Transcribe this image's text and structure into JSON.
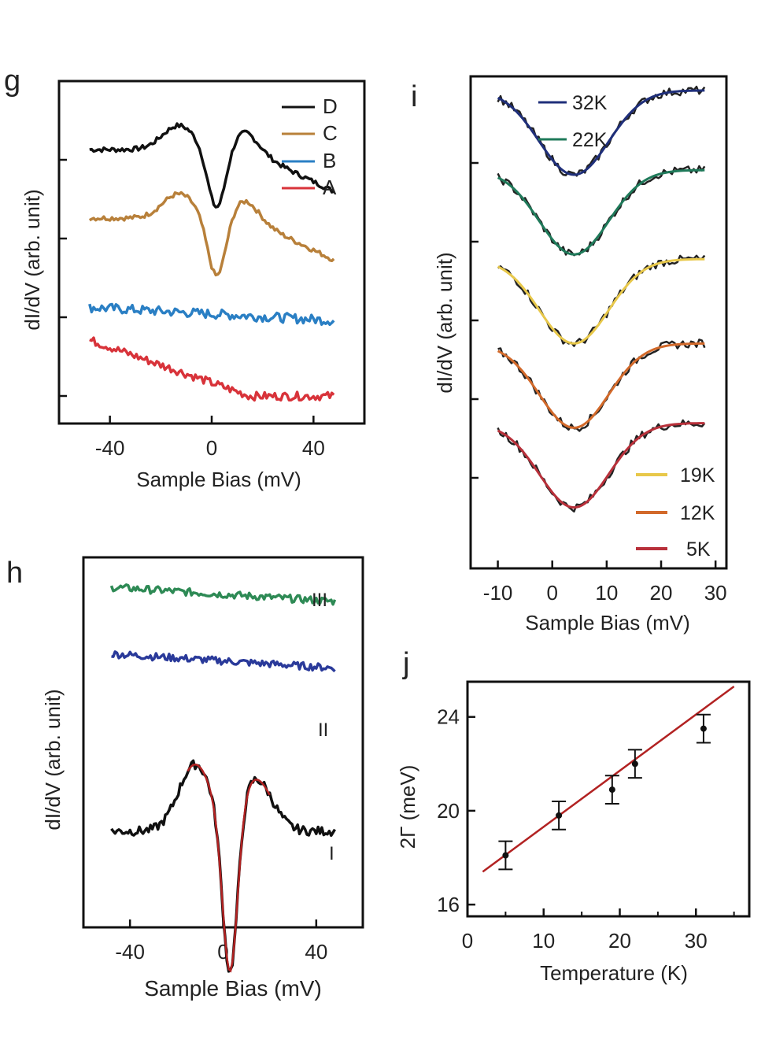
{
  "chart_data": [
    {
      "id": "g",
      "type": "line",
      "panel_label": "g",
      "xlabel": "Sample Bias (mV)",
      "ylabel": "dI/dV (arb. unit)",
      "xticks": [
        "-40",
        "0",
        "40"
      ],
      "xtick_values": [
        -40,
        0,
        40
      ],
      "xlim": [
        -60,
        60
      ],
      "legend": [
        "D",
        "C",
        "B",
        "A"
      ],
      "series": [
        {
          "name": "D",
          "color": "#111111",
          "style": "gap",
          "center": 0,
          "offset": 4.0,
          "amp": 0.9
        },
        {
          "name": "C",
          "color": "#b8803a",
          "style": "gap",
          "center": 0,
          "offset": 3.0,
          "amp": 0.9
        },
        {
          "name": "B",
          "color": "#2a7fc4",
          "style": "flat",
          "offset": 1.6
        },
        {
          "name": "A",
          "color": "#d8333a",
          "style": "slope",
          "offset": 0.4
        }
      ]
    },
    {
      "id": "h",
      "type": "line",
      "panel_label": "h",
      "xlabel": "Sample Bias (mV)",
      "ylabel": "dI/dV (arb. unit)",
      "xticks": [
        "-40",
        "0",
        "40"
      ],
      "xtick_values": [
        -40,
        0,
        40
      ],
      "xlim": [
        -60,
        60
      ],
      "curve_labels": [
        "III",
        "II",
        "I"
      ],
      "series": [
        {
          "name": "III",
          "color": "#2e8a55",
          "style": "flat",
          "offset": 4.5
        },
        {
          "name": "II",
          "color": "#2a3a9a",
          "style": "flat",
          "offset": 3.6
        },
        {
          "name": "I",
          "color": "#111111",
          "style": "deepgap",
          "fit_color": "#b22222",
          "offset": 1.0
        }
      ]
    },
    {
      "id": "i",
      "type": "line",
      "panel_label": "i",
      "xlabel": "Sample Bias (mV)",
      "ylabel": "dI/dV (arb. unit)",
      "xticks": [
        "-10",
        "0",
        "10",
        "20",
        "30"
      ],
      "xtick_values": [
        -10,
        0,
        10,
        20,
        30
      ],
      "xlim": [
        -15,
        32
      ],
      "legend": [
        "32K",
        "22K",
        "19K",
        "12K",
        "5K"
      ],
      "series": [
        {
          "name": "32K",
          "color": "#1f2f7a",
          "offset": 8.6
        },
        {
          "name": "22K",
          "color": "#1f7a5a",
          "offset": 6.9
        },
        {
          "name": "19K",
          "color": "#e8c84a",
          "offset": 5.0
        },
        {
          "name": "12K",
          "color": "#d2692a",
          "offset": 3.2
        },
        {
          "name": "5K",
          "color": "#b8303a",
          "offset": 1.5
        }
      ]
    },
    {
      "id": "j",
      "type": "scatter",
      "panel_label": "j",
      "xlabel": "Temperature (K)",
      "ylabel": "2Γ (meV)",
      "xticks": [
        "0",
        "10",
        "20",
        "30"
      ],
      "xtick_values": [
        0,
        10,
        20,
        30
      ],
      "yticks": [
        "16",
        "20",
        "24"
      ],
      "ytick_values": [
        16,
        20,
        24
      ],
      "xlim": [
        0,
        37
      ],
      "ylim": [
        15.5,
        25.5
      ],
      "x": [
        5,
        12,
        19,
        22,
        31
      ],
      "y": [
        18.1,
        19.8,
        20.9,
        22.0,
        23.5
      ],
      "err": [
        0.6,
        0.6,
        0.6,
        0.6,
        0.6
      ],
      "fit": {
        "x": [
          2,
          35
        ],
        "y": [
          17.4,
          25.3
        ],
        "color": "#b22222"
      }
    }
  ]
}
